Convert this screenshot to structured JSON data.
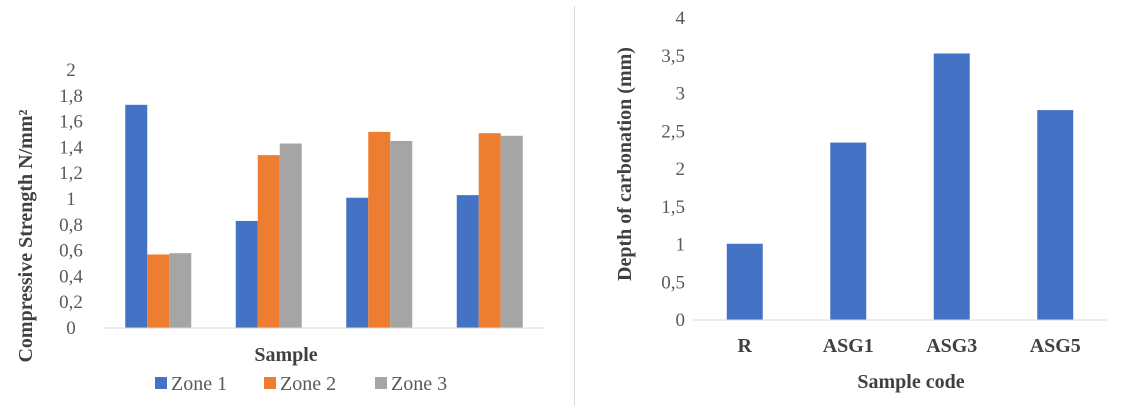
{
  "chart_data": [
    {
      "type": "bar",
      "title": "",
      "xlabel": "Sample",
      "ylabel": "Compressive Strength N/mm²",
      "categories": [
        "",
        "",
        "",
        ""
      ],
      "series": [
        {
          "name": "Zone 1",
          "color": "#4472C4",
          "values": [
            1.73,
            0.83,
            1.01,
            1.03
          ]
        },
        {
          "name": "Zone 2",
          "color": "#ED7D31",
          "values": [
            0.57,
            1.34,
            1.52,
            1.51
          ]
        },
        {
          "name": "Zone 3",
          "color": "#A5A5A5",
          "values": [
            0.58,
            1.43,
            1.45,
            1.49
          ]
        }
      ],
      "ylim": [
        0,
        2
      ],
      "yticks": [
        "0",
        "0,2",
        "0,4",
        "0,6",
        "0,8",
        "1",
        "1,2",
        "1,4",
        "1,6",
        "1,8",
        "2"
      ],
      "grid": false,
      "legend": "bottom"
    },
    {
      "type": "bar",
      "title": "",
      "xlabel": "Sample code",
      "ylabel": "Depth of carbonation (mm)",
      "categories": [
        "R",
        "ASG1",
        "ASG3",
        "ASG5"
      ],
      "series": [
        {
          "color": "#4472C4",
          "values": [
            1.01,
            2.35,
            3.53,
            2.78
          ]
        }
      ],
      "ylim": [
        0,
        4
      ],
      "yticks": [
        "0",
        "0,5",
        "1",
        "1,5",
        "2",
        "2,5",
        "3",
        "3,5",
        "4"
      ],
      "grid": false
    }
  ]
}
